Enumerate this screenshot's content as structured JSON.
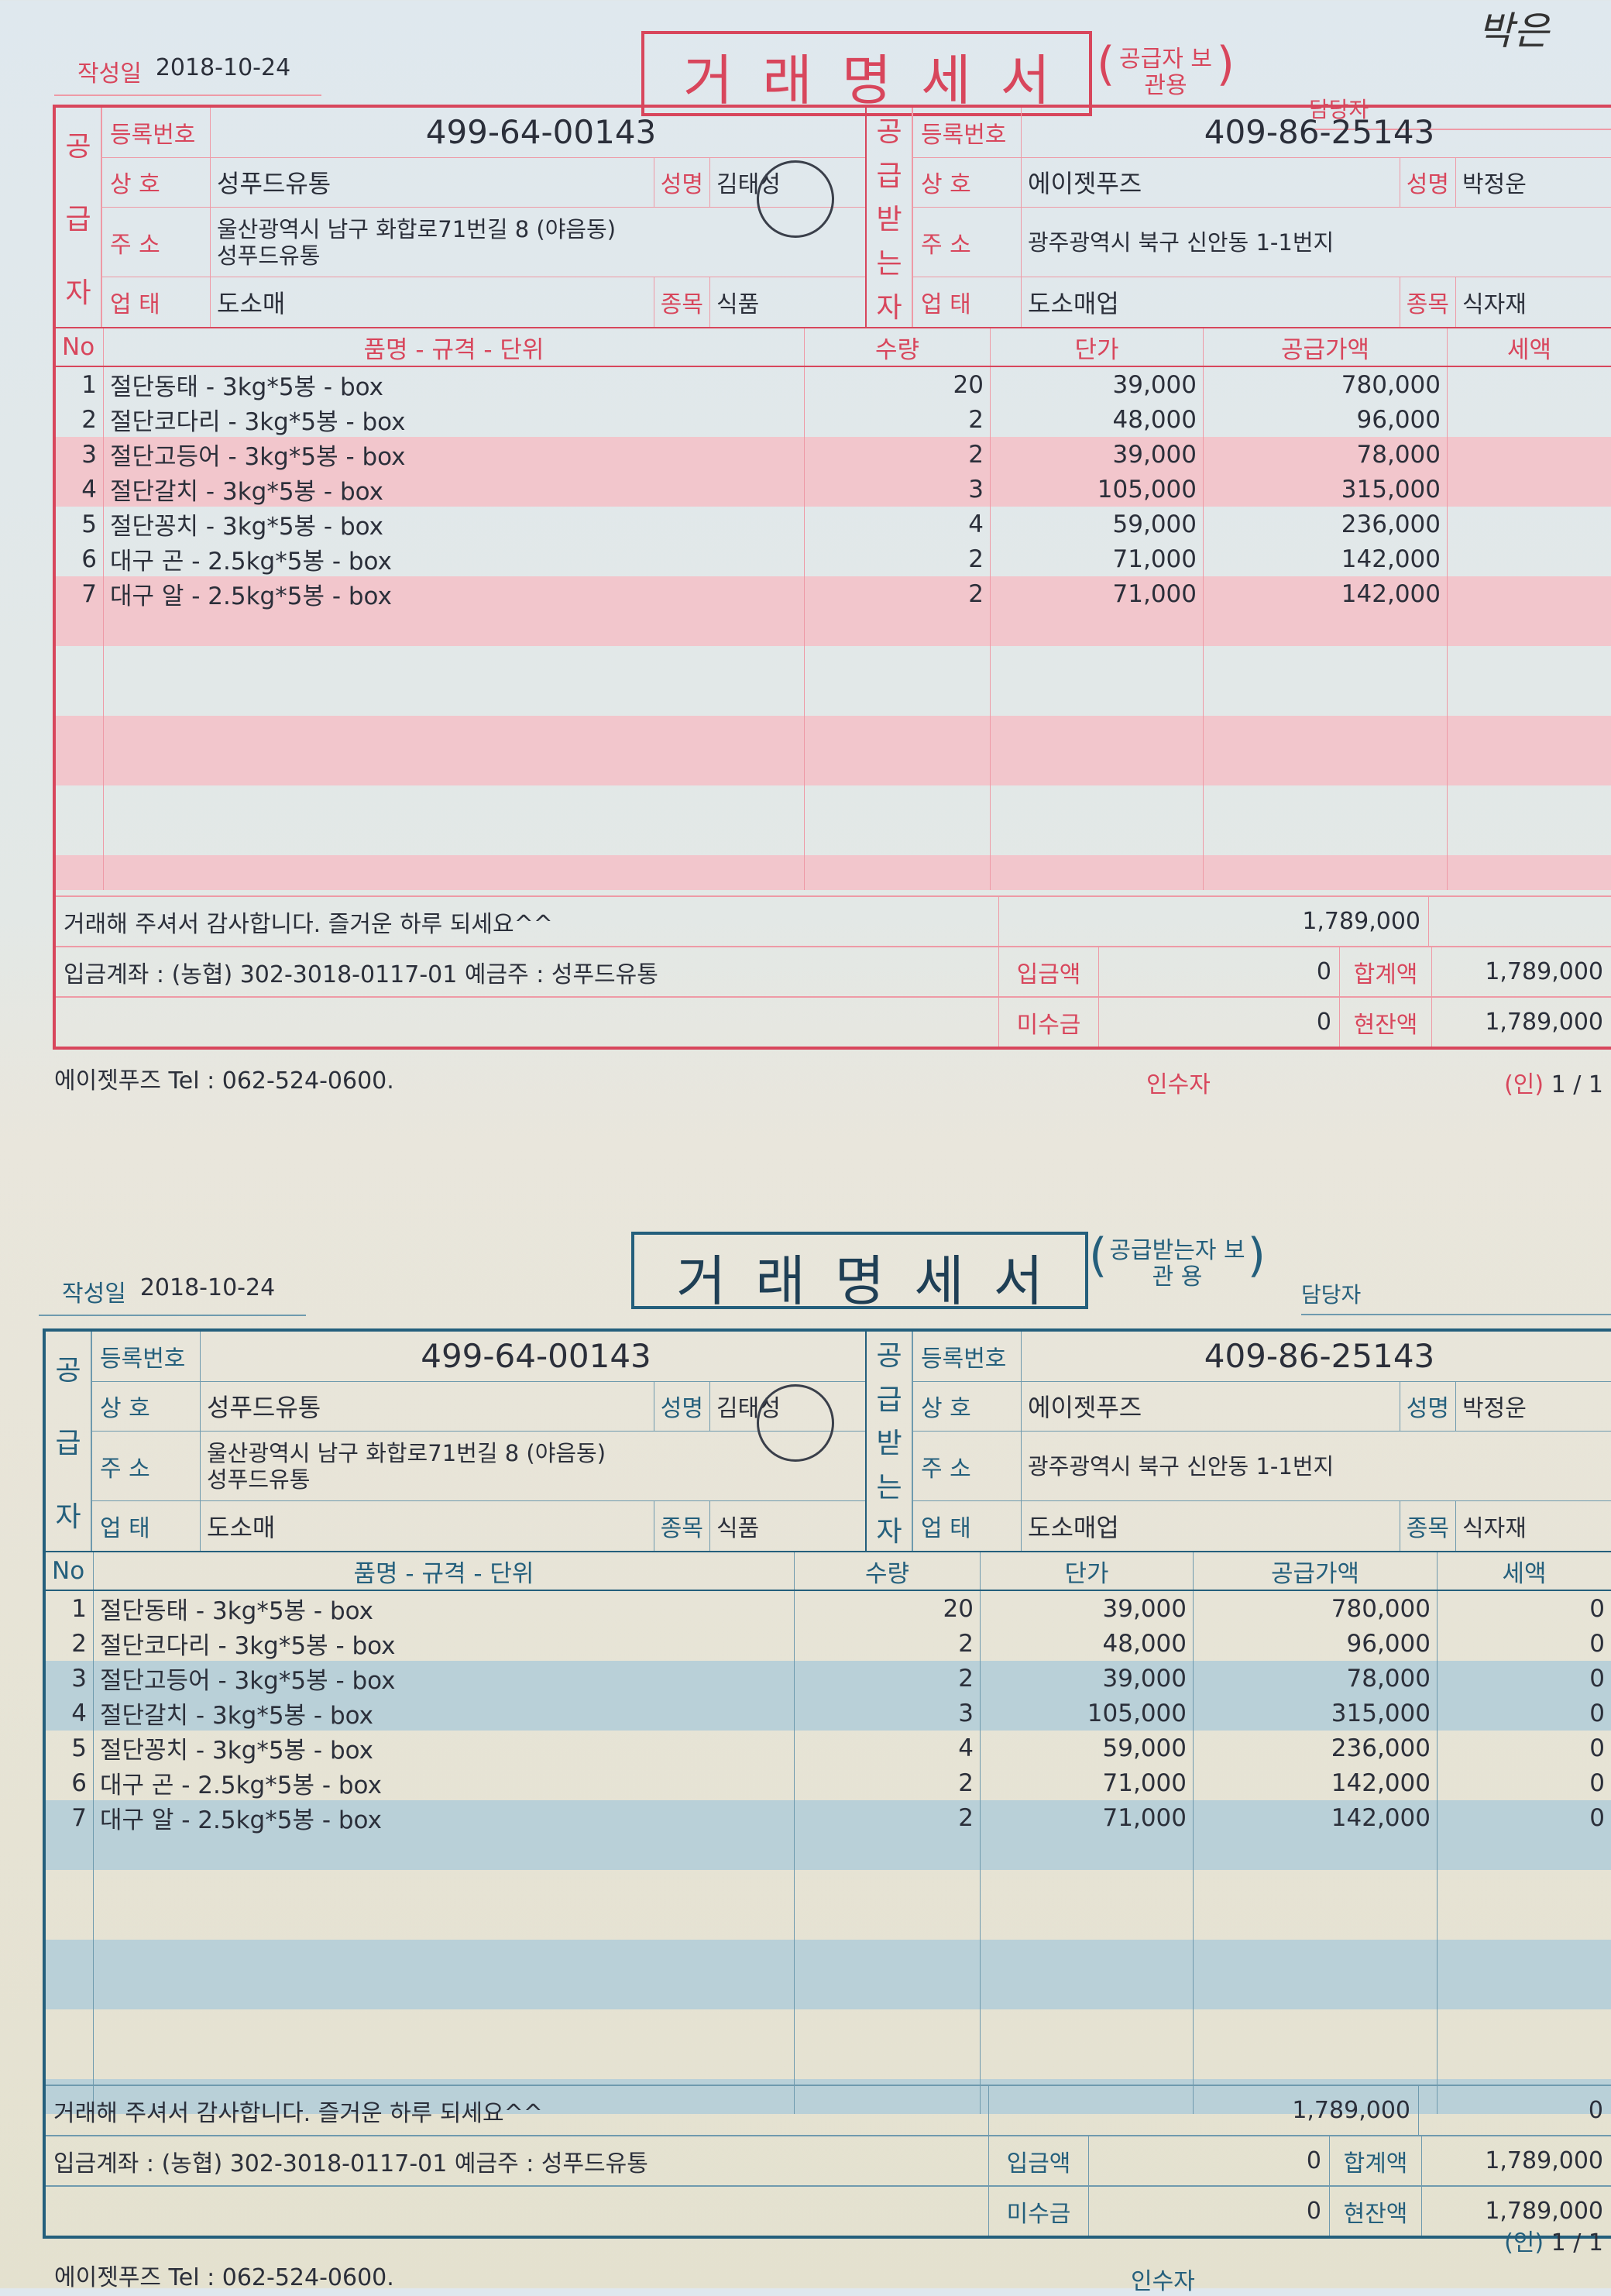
{
  "handwriting": "박은",
  "forms": [
    {
      "theme": "red",
      "date_label": "작성일",
      "date": "2018-10-24",
      "title": "거래명세서",
      "copy": "공급자 보관용",
      "manager_label": "담당자",
      "supplier": {
        "side_label": "공급자",
        "reg_label": "등록번호",
        "reg": "499-64-00143",
        "name_label": "상  호",
        "name": "성푸드유통",
        "rep_label": "성명",
        "rep": "김태성",
        "addr_label": "주  소",
        "addr": "울산광역시 남구 화합로71번길 8 (야음동)",
        "addr2": "성푸드유통",
        "biz_label": "업  태",
        "biz": "도소매",
        "item_label": "종목",
        "item": "식품"
      },
      "receiver": {
        "side_label": "공급받는자",
        "reg_label": "등록번호",
        "reg": "409-86-25143",
        "name_label": "상  호",
        "name": "에이젯푸즈",
        "rep_label": "성명",
        "rep": "박정운",
        "addr_label": "주  소",
        "addr": "광주광역시 북구 신안동 1-1번지",
        "biz_label": "업  태",
        "biz": "도소매업",
        "item_label": "종목",
        "item": "식자재"
      },
      "columns": [
        "No",
        "품명 - 규격 - 단위",
        "수량",
        "단가",
        "공급가액",
        "세액"
      ],
      "items": [
        {
          "no": "1",
          "name": "절단동태 - 3kg*5봉 - box",
          "qty": "20",
          "price": "39,000",
          "amount": "780,000",
          "tax": ""
        },
        {
          "no": "2",
          "name": "절단코다리 - 3kg*5봉 - box",
          "qty": "2",
          "price": "48,000",
          "amount": "96,000",
          "tax": ""
        },
        {
          "no": "3",
          "name": "절단고등어 - 3kg*5봉 - box",
          "qty": "2",
          "price": "39,000",
          "amount": "78,000",
          "tax": ""
        },
        {
          "no": "4",
          "name": "절단갈치 - 3kg*5봉 - box",
          "qty": "3",
          "price": "105,000",
          "amount": "315,000",
          "tax": ""
        },
        {
          "no": "5",
          "name": "절단꽁치 - 3kg*5봉 - box",
          "qty": "4",
          "price": "59,000",
          "amount": "236,000",
          "tax": ""
        },
        {
          "no": "6",
          "name": "대구 곤 - 2.5kg*5봉 - box",
          "qty": "2",
          "price": "71,000",
          "amount": "142,000",
          "tax": ""
        },
        {
          "no": "7",
          "name": "대구 알 - 2.5kg*5봉 - box",
          "qty": "2",
          "price": "71,000",
          "amount": "142,000",
          "tax": ""
        }
      ],
      "thanks": "거래해 주셔서 감사합니다. 즐거운 하루 되세요^^",
      "subtotal": "1,789,000",
      "subtotal_tax": "",
      "account": "입금계좌 : (농협) 302-3018-0117-01 예금주 : 성푸드유통",
      "paid_label": "입금액",
      "paid": "0",
      "total_label": "합계액",
      "total": "1,789,000",
      "unpaid_label": "미수금",
      "unpaid": "0",
      "balance_label": "현잔액",
      "balance": "1,789,000",
      "tel": "에이젯푸즈 Tel : 062-524-0600.",
      "receiver_sign": "인수자",
      "seal": "(인)",
      "page": "1 / 1"
    },
    {
      "theme": "blue",
      "date_label": "작성일",
      "date": "2018-10-24",
      "title": "거래명세서",
      "copy": "공급받는자 보 관 용",
      "manager_label": "담당자",
      "supplier": {
        "side_label": "공급자",
        "reg_label": "등록번호",
        "reg": "499-64-00143",
        "name_label": "상  호",
        "name": "성푸드유통",
        "rep_label": "성명",
        "rep": "김태성",
        "addr_label": "주  소",
        "addr": "울산광역시 남구 화합로71번길 8 (야음동)",
        "addr2": "성푸드유통",
        "biz_label": "업  태",
        "biz": "도소매",
        "item_label": "종목",
        "item": "식품"
      },
      "receiver": {
        "side_label": "공급받는자",
        "reg_label": "등록번호",
        "reg": "409-86-25143",
        "name_label": "상  호",
        "name": "에이젯푸즈",
        "rep_label": "성명",
        "rep": "박정운",
        "addr_label": "주  소",
        "addr": "광주광역시 북구 신안동 1-1번지",
        "biz_label": "업  태",
        "biz": "도소매업",
        "item_label": "종목",
        "item": "식자재"
      },
      "columns": [
        "No",
        "품명 - 규격 - 단위",
        "수량",
        "단가",
        "공급가액",
        "세액"
      ],
      "items": [
        {
          "no": "1",
          "name": "절단동태 - 3kg*5봉 - box",
          "qty": "20",
          "price": "39,000",
          "amount": "780,000",
          "tax": "0"
        },
        {
          "no": "2",
          "name": "절단코다리 - 3kg*5봉 - box",
          "qty": "2",
          "price": "48,000",
          "amount": "96,000",
          "tax": "0"
        },
        {
          "no": "3",
          "name": "절단고등어 - 3kg*5봉 - box",
          "qty": "2",
          "price": "39,000",
          "amount": "78,000",
          "tax": "0"
        },
        {
          "no": "4",
          "name": "절단갈치 - 3kg*5봉 - box",
          "qty": "3",
          "price": "105,000",
          "amount": "315,000",
          "tax": "0"
        },
        {
          "no": "5",
          "name": "절단꽁치 - 3kg*5봉 - box",
          "qty": "4",
          "price": "59,000",
          "amount": "236,000",
          "tax": "0"
        },
        {
          "no": "6",
          "name": "대구 곤 - 2.5kg*5봉 - box",
          "qty": "2",
          "price": "71,000",
          "amount": "142,000",
          "tax": "0"
        },
        {
          "no": "7",
          "name": "대구 알 - 2.5kg*5봉 - box",
          "qty": "2",
          "price": "71,000",
          "amount": "142,000",
          "tax": "0"
        }
      ],
      "thanks": "거래해 주셔서 감사합니다. 즐거운 하루 되세요^^",
      "subtotal": "1,789,000",
      "subtotal_tax": "0",
      "account": "입금계좌 : (농협) 302-3018-0117-01 예금주 : 성푸드유통",
      "paid_label": "입금액",
      "paid": "0",
      "total_label": "합계액",
      "total": "1,789,000",
      "unpaid_label": "미수금",
      "unpaid": "0",
      "balance_label": "현잔액",
      "balance": "1,789,000",
      "tel": "에이젯푸즈 Tel : 062-524-0600.",
      "receiver_sign": "인수자",
      "seal": "(인)",
      "page": "1 / 1"
    }
  ]
}
